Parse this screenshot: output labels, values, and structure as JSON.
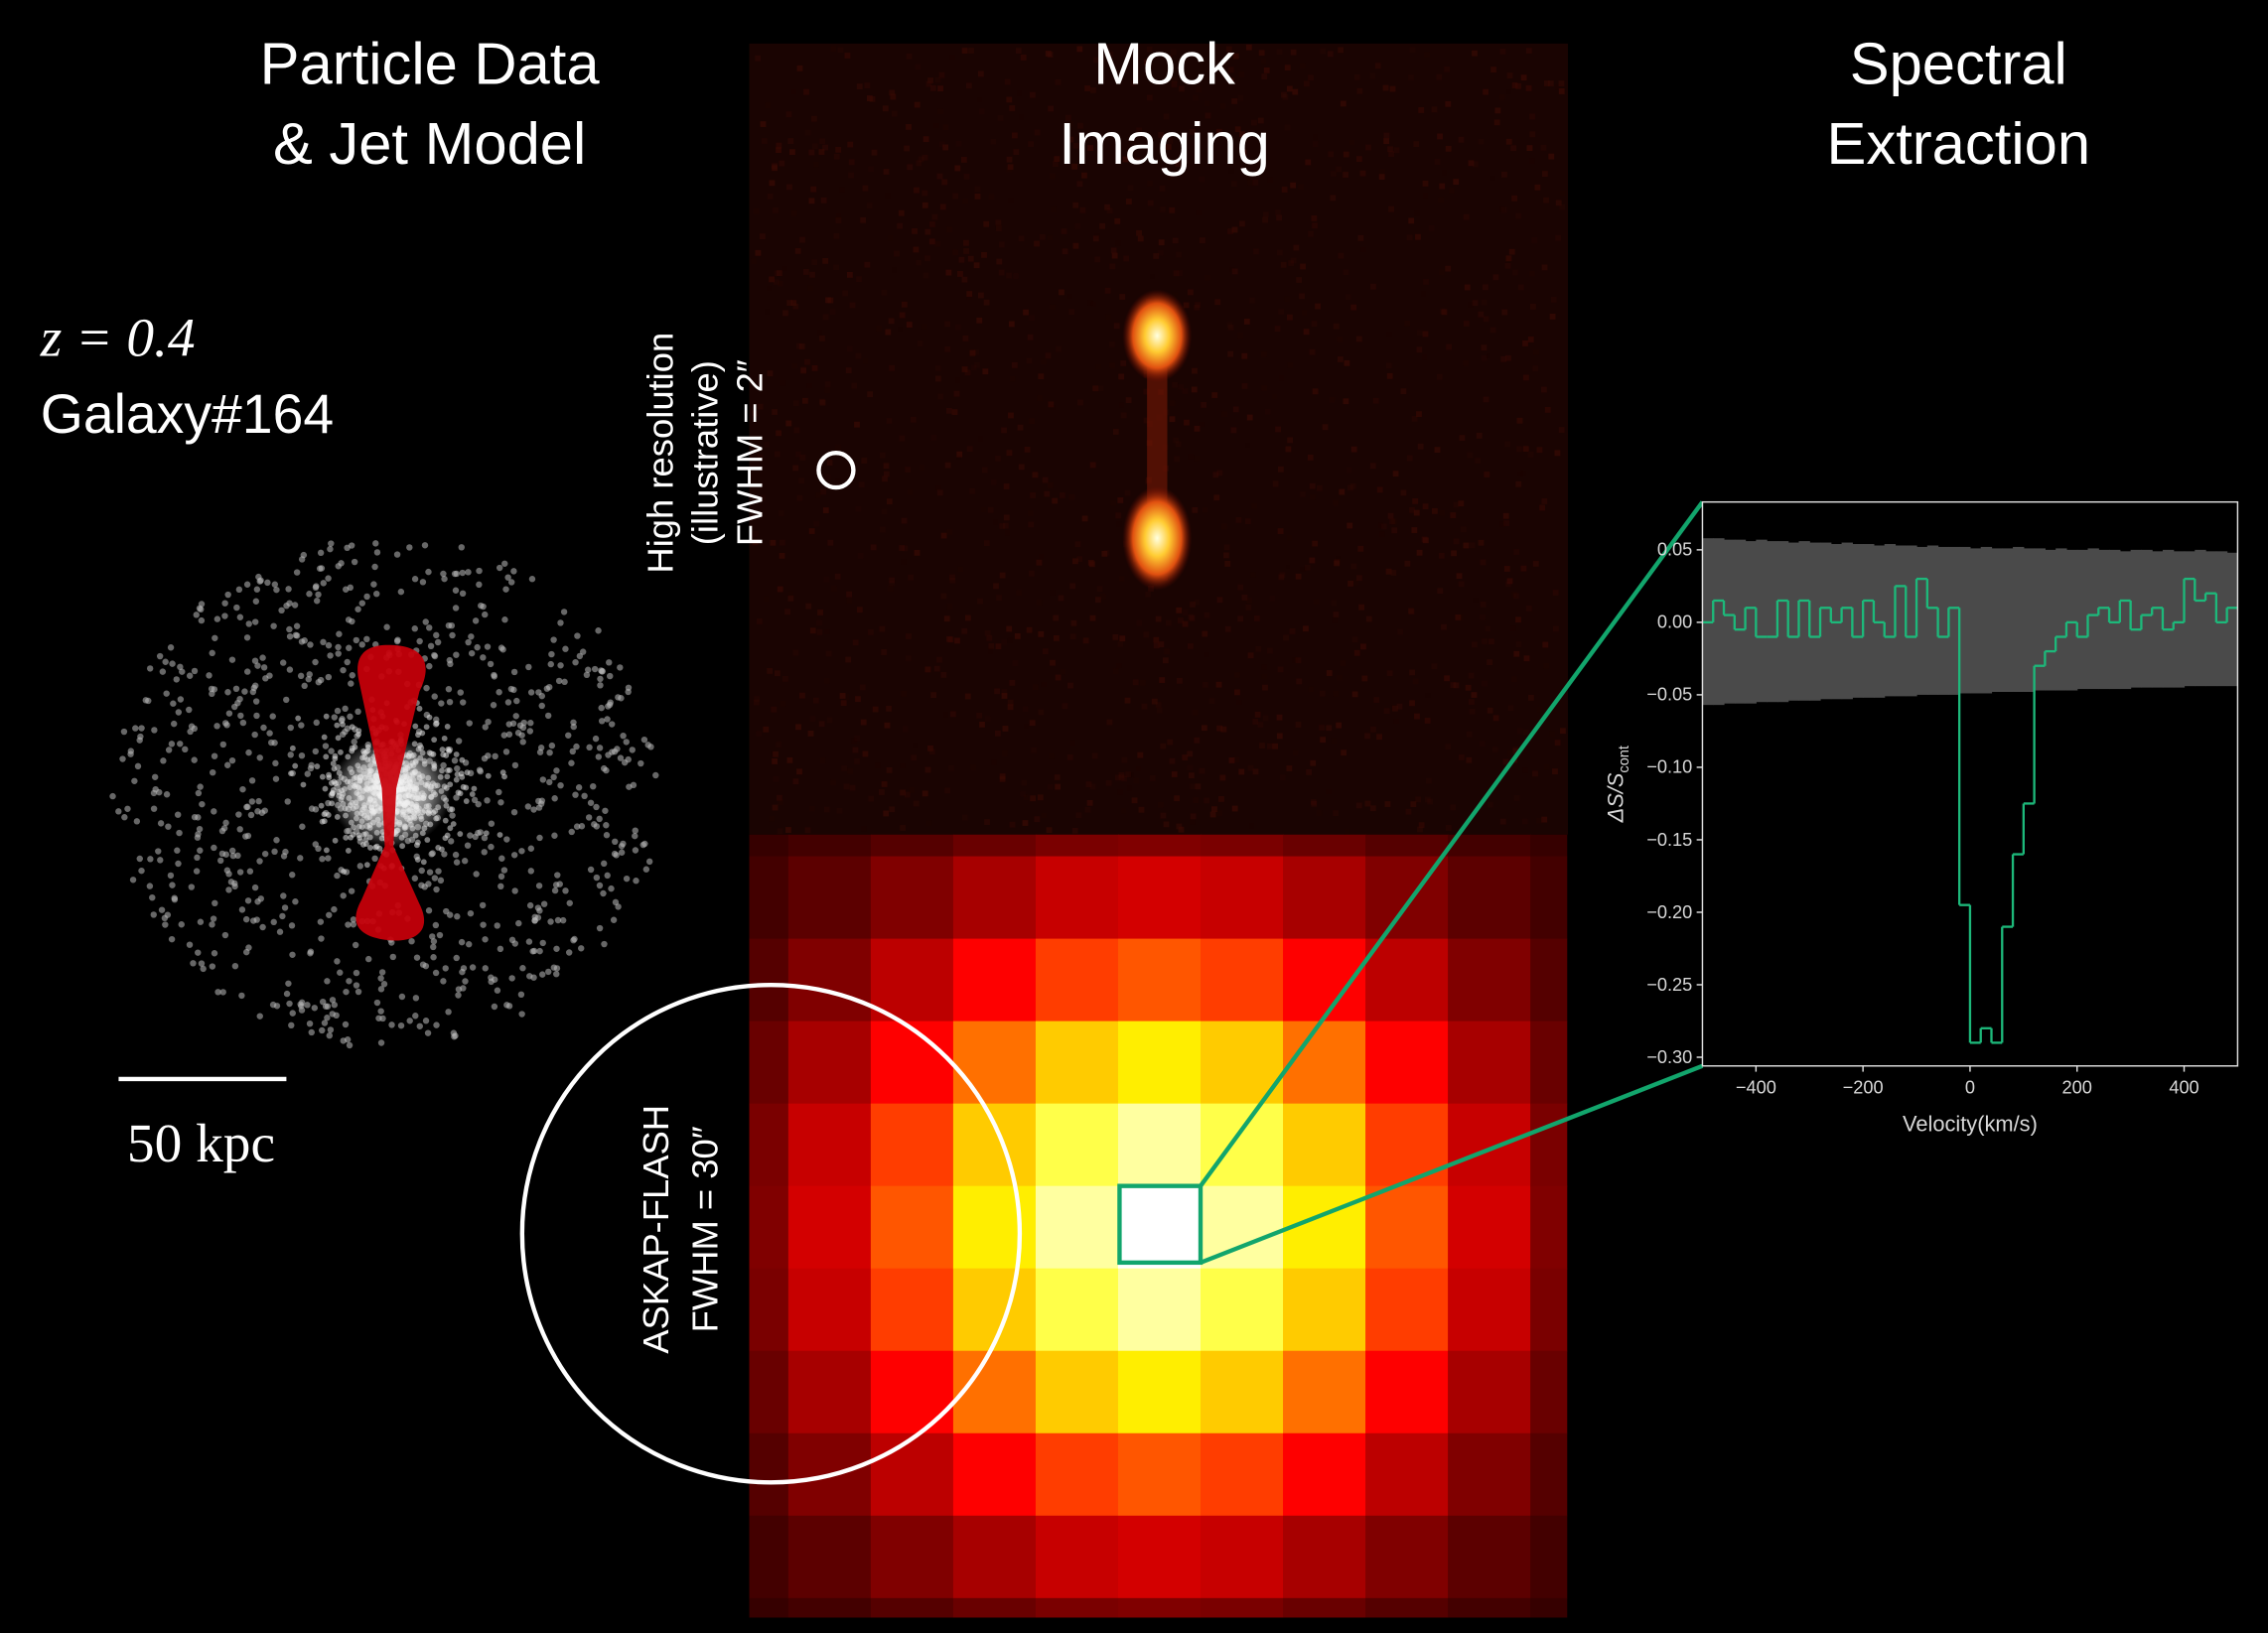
{
  "panels": {
    "left_title": [
      "Particle Data",
      "& Jet Model"
    ],
    "middle_title": [
      "Mock",
      "Imaging"
    ],
    "right_title": [
      "Spectral",
      "Extraction"
    ],
    "redshift": "z = 0.4",
    "galaxy": "Galaxy#164",
    "scale_bar": "50 kpc",
    "high_res_label": [
      "High resolution",
      "(illustrative)",
      "FWHM = 2″"
    ],
    "askap_label": [
      "ASKAP-FLASH",
      "FWHM = 30″"
    ]
  },
  "chart_data": {
    "type": "step",
    "x_label": "Velocity(km/s)",
    "y_label": "ΔS/S",
    "y_label_sub": "cont",
    "line_color": "#1db87a",
    "band_color": "#4a4a4a",
    "xlim": [
      -500,
      500
    ],
    "ylim": [
      -0.306,
      0.083
    ],
    "xticks": [
      {
        "value": -400,
        "label": "−400"
      },
      {
        "value": -200,
        "label": "−200"
      },
      0,
      200,
      400
    ],
    "yticks": [
      {
        "value": 0.05,
        "label": "0.05"
      },
      {
        "value": 0,
        "label": "0.00"
      },
      {
        "value": -0.05,
        "label": "−0.05"
      },
      {
        "value": -0.1,
        "label": "−0.10"
      },
      {
        "value": -0.15,
        "label": "−0.15"
      },
      {
        "value": -0.2,
        "label": "−0.20"
      },
      {
        "value": -0.25,
        "label": "−0.25"
      },
      {
        "value": -0.3,
        "label": "−0.30"
      }
    ],
    "x": [
      -500,
      -480,
      -460,
      -440,
      -420,
      -400,
      -380,
      -360,
      -340,
      -320,
      -300,
      -280,
      -260,
      -240,
      -220,
      -200,
      -180,
      -160,
      -140,
      -120,
      -100,
      -80,
      -60,
      -40,
      -20,
      0,
      20,
      40,
      60,
      80,
      100,
      120,
      140,
      160,
      180,
      200,
      220,
      240,
      260,
      280,
      300,
      320,
      340,
      360,
      380,
      400,
      420,
      440,
      460,
      480
    ],
    "values": [
      0.0,
      0.015,
      0.005,
      -0.005,
      0.01,
      -0.01,
      -0.01,
      0.015,
      -0.01,
      0.015,
      -0.01,
      0.01,
      0.0,
      0.01,
      -0.01,
      0.015,
      0.0,
      -0.01,
      0.025,
      -0.01,
      0.03,
      0.01,
      -0.01,
      0.01,
      -0.195,
      -0.29,
      -0.28,
      -0.29,
      -0.21,
      -0.16,
      -0.125,
      -0.03,
      -0.02,
      -0.01,
      0.0,
      -0.01,
      0.005,
      0.01,
      0.0,
      0.015,
      -0.005,
      0.005,
      0.01,
      -0.005,
      0.0,
      0.03,
      0.015,
      0.02,
      0.0,
      0.01
    ],
    "band_upper": [
      0.058,
      0.058,
      0.057,
      0.057,
      0.056,
      0.057,
      0.056,
      0.056,
      0.055,
      0.056,
      0.055,
      0.055,
      0.054,
      0.055,
      0.054,
      0.054,
      0.053,
      0.054,
      0.053,
      0.053,
      0.052,
      0.053,
      0.052,
      0.052,
      0.052,
      0.051,
      0.052,
      0.051,
      0.051,
      0.052,
      0.051,
      0.051,
      0.05,
      0.051,
      0.05,
      0.05,
      0.051,
      0.05,
      0.05,
      0.049,
      0.05,
      0.05,
      0.049,
      0.05,
      0.049,
      0.049,
      0.05,
      0.049,
      0.049,
      0.048
    ],
    "band_lower": [
      -0.057,
      -0.057,
      -0.056,
      -0.056,
      -0.056,
      -0.055,
      -0.055,
      -0.055,
      -0.054,
      -0.054,
      -0.054,
      -0.053,
      -0.053,
      -0.053,
      -0.052,
      -0.052,
      -0.052,
      -0.051,
      -0.051,
      -0.051,
      -0.05,
      -0.05,
      -0.05,
      -0.05,
      -0.049,
      -0.049,
      -0.049,
      -0.048,
      -0.048,
      -0.048,
      -0.048,
      -0.047,
      -0.047,
      -0.047,
      -0.047,
      -0.046,
      -0.046,
      -0.046,
      -0.046,
      -0.046,
      -0.045,
      -0.045,
      -0.045,
      -0.045,
      -0.045,
      -0.044,
      -0.044,
      -0.044,
      -0.044,
      -0.044
    ]
  }
}
